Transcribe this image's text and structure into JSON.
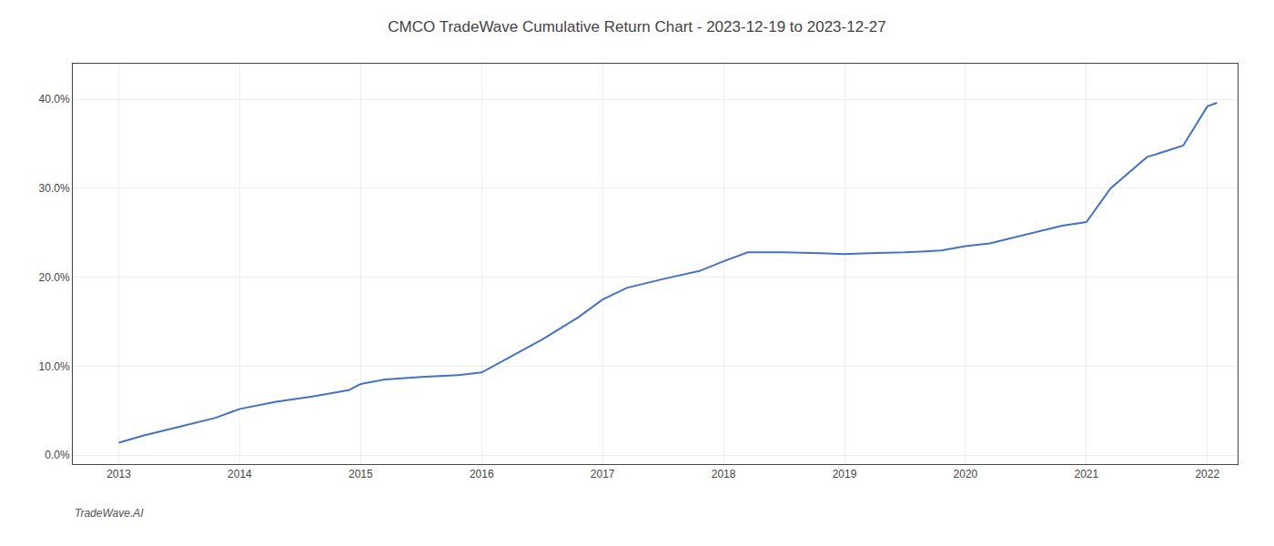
{
  "chart_data": {
    "type": "line",
    "title": "CMCO TradeWave Cumulative Return Chart - 2023-12-19 to 2023-12-27",
    "annotations": [
      "TradeWave.AI"
    ],
    "x": [
      2013.0,
      2013.2,
      2013.5,
      2013.8,
      2014.0,
      2014.3,
      2014.6,
      2014.9,
      2015.0,
      2015.2,
      2015.5,
      2015.8,
      2016.0,
      2016.2,
      2016.5,
      2016.8,
      2017.0,
      2017.2,
      2017.5,
      2017.8,
      2018.0,
      2018.2,
      2018.5,
      2018.8,
      2019.0,
      2019.2,
      2019.5,
      2019.8,
      2020.0,
      2020.2,
      2020.5,
      2020.8,
      2021.0,
      2021.2,
      2021.5,
      2021.8,
      2022.0,
      2022.08
    ],
    "values": [
      0.014,
      0.022,
      0.032,
      0.042,
      0.052,
      0.06,
      0.066,
      0.073,
      0.08,
      0.085,
      0.088,
      0.09,
      0.093,
      0.108,
      0.13,
      0.155,
      0.175,
      0.188,
      0.198,
      0.207,
      0.218,
      0.228,
      0.228,
      0.227,
      0.226,
      0.227,
      0.228,
      0.23,
      0.235,
      0.238,
      0.248,
      0.258,
      0.262,
      0.3,
      0.335,
      0.348,
      0.392,
      0.396
    ],
    "color": "#4472c4",
    "xlim": [
      2012.62,
      2022.25
    ],
    "xticks": [
      2013,
      2014,
      2015,
      2016,
      2017,
      2018,
      2019,
      2020,
      2021,
      2022
    ],
    "ylim": [
      -0.01,
      0.44
    ],
    "yticks": [
      {
        "value": 0.0,
        "label": "0.0%"
      },
      {
        "value": 0.1,
        "label": "10.0%"
      },
      {
        "value": 0.2,
        "label": "20.0%"
      },
      {
        "value": 0.3,
        "label": "30.0%"
      },
      {
        "value": 0.4,
        "label": "40.0%"
      }
    ],
    "grid": true
  }
}
